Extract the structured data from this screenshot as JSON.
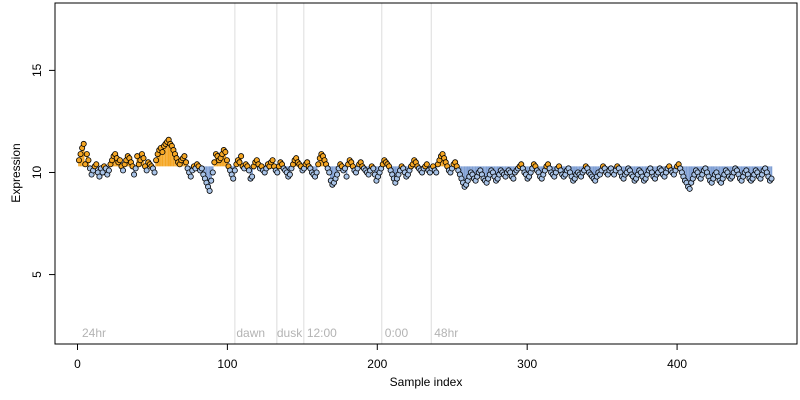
{
  "chart_data": {
    "type": "scatter",
    "title": "",
    "xlabel": "Sample index",
    "ylabel": "Expression",
    "xlim": [
      -15,
      480
    ],
    "ylim": [
      1.6,
      18.3
    ],
    "x_ticks": [
      0,
      100,
      200,
      300,
      400
    ],
    "y_ticks": [
      5,
      10,
      15
    ],
    "grid": false,
    "legend": "none",
    "colors": {
      "point_fill_orange": "#f5a623",
      "point_fill_blue": "#a9c4e8",
      "point_stroke": "#000000",
      "step_line": "#7f9fd4",
      "vline": "#dcdcdc",
      "annotation_text": "#b3b3b3"
    },
    "vlines": [
      105,
      133,
      151,
      203,
      236
    ],
    "annotations": [
      {
        "label": "24hr",
        "x": 3
      },
      {
        "label": "dawn",
        "x": 106
      },
      {
        "label": "dusk",
        "x": 133
      },
      {
        "label": "12:00",
        "x": 153
      },
      {
        "label": "0:00",
        "x": 205
      },
      {
        "label": "48hr",
        "x": 238
      }
    ],
    "series": [
      {
        "marker": "circle",
        "x_start": 1,
        "x_end": 463,
        "baseline": 10.3,
        "values": [
          10.6,
          10.9,
          11.2,
          11.4,
          10.4,
          10.9,
          10.6,
          10.2,
          9.9,
          10.1,
          10.3,
          10.4,
          10.0,
          9.8,
          10.2,
          10.0,
          10.3,
          10.2,
          9.9,
          10.1,
          10.4,
          10.6,
          10.8,
          10.9,
          10.7,
          10.5,
          10.6,
          10.3,
          10.1,
          10.4,
          10.6,
          10.8,
          10.7,
          10.5,
          10.3,
          9.9,
          10.2,
          10.8,
          10.4,
          10.6,
          10.9,
          10.7,
          10.3,
          10.1,
          10.5,
          10.4,
          10.3,
          10.2,
          10.0,
          10.6,
          10.9,
          11.1,
          11.2,
          11.0,
          11.3,
          11.4,
          11.5,
          11.6,
          11.4,
          11.3,
          11.1,
          10.9,
          10.7,
          10.5,
          10.4,
          10.6,
          10.7,
          10.8,
          10.5,
          10.2,
          10.0,
          9.8,
          10.1,
          10.3,
          10.2,
          10.4,
          10.3,
          10.1,
          10.2,
          9.9,
          9.7,
          9.5,
          9.3,
          9.1,
          9.6,
          10.0,
          10.5,
          10.9,
          10.8,
          10.6,
          10.7,
          10.9,
          11.1,
          11.0,
          10.6,
          10.3,
          10.1,
          9.9,
          9.7,
          10.1,
          10.4,
          10.6,
          10.5,
          10.8,
          10.3,
          10.2,
          10.4,
          10.3,
          10.1,
          9.7,
          9.8,
          10.3,
          10.5,
          10.6,
          10.4,
          10.2,
          10.3,
          10.1,
          10.0,
          10.2,
          10.4,
          10.3,
          10.5,
          10.6,
          10.3,
          10.1,
          10.0,
          10.3,
          10.5,
          10.4,
          10.2,
          10.1,
          10.0,
          9.8,
          9.9,
          10.2,
          10.4,
          10.6,
          10.7,
          10.5,
          10.4,
          10.3,
          10.1,
          10.2,
          10.4,
          10.5,
          10.3,
          10.2,
          10.0,
          9.9,
          9.8,
          10.0,
          10.4,
          10.7,
          10.9,
          10.8,
          10.6,
          10.4,
          10.2,
          10.0,
          9.6,
          9.4,
          9.5,
          9.7,
          9.9,
          10.2,
          10.4,
          10.3,
          10.1,
          10.2,
          9.8,
          10.4,
          10.6,
          10.5,
          10.3,
          10.1,
          10.0,
          10.2,
          10.4,
          10.5,
          10.3,
          10.2,
          10.1,
          10.0,
          9.9,
          10.1,
          10.3,
          10.2,
          9.9,
          9.6,
          9.8,
          10.0,
          10.2,
          10.4,
          10.6,
          10.5,
          10.4,
          10.3,
          10.1,
          9.9,
          9.7,
          9.5,
          9.7,
          9.9,
          10.1,
          10.3,
          10.2,
          10.0,
          9.8,
          9.9,
          10.1,
          10.3,
          10.4,
          10.6,
          10.5,
          10.3,
          10.2,
          10.1,
          10.0,
          10.2,
          10.3,
          10.4,
          10.1,
          10.0,
          10.2,
          10.3,
          10.1,
          10.0,
          10.4,
          10.6,
          10.8,
          10.9,
          10.7,
          10.5,
          10.3,
          10.1,
          10.0,
          10.2,
          10.4,
          10.5,
          10.3,
          10.1,
          9.9,
          9.7,
          9.5,
          9.3,
          9.4,
          9.6,
          9.8,
          10.0,
          9.9,
          9.7,
          9.6,
          9.8,
          10.0,
          10.1,
          9.9,
          9.7,
          9.6,
          9.5,
          9.7,
          9.9,
          10.1,
          10.0,
          9.8,
          9.6,
          9.7,
          9.9,
          10.1,
          10.0,
          9.9,
          9.8,
          10.0,
          10.1,
          10.0,
          9.8,
          9.7,
          10.0,
          10.1,
          10.2,
          10.3,
          10.4,
          10.2,
          10.0,
          9.9,
          9.7,
          9.8,
          10.0,
          10.2,
          10.4,
          10.3,
          10.1,
          10.0,
          9.8,
          9.7,
          9.9,
          10.1,
          10.3,
          10.4,
          10.2,
          10.0,
          9.9,
          9.8,
          10.0,
          10.2,
          10.3,
          10.1,
          9.9,
          9.8,
          9.9,
          10.1,
          10.2,
          10.0,
          9.8,
          9.6,
          9.7,
          9.9,
          10.0,
          9.9,
          9.8,
          10.0,
          10.1,
          10.3,
          10.2,
          10.0,
          9.9,
          9.8,
          9.7,
          9.6,
          9.8,
          10.0,
          9.9,
          10.1,
          10.3,
          10.2,
          10.0,
          9.9,
          10.1,
          10.2,
          10.0,
          9.9,
          10.1,
          10.3,
          10.2,
          10.0,
          9.8,
          9.7,
          9.9,
          10.0,
          10.2,
          10.1,
          9.9,
          9.8,
          9.6,
          9.7,
          9.9,
          10.1,
          10.0,
          9.8,
          9.6,
          9.7,
          9.9,
          10.1,
          10.2,
          10.0,
          9.8,
          9.7,
          9.9,
          10.0,
          10.2,
          10.1,
          9.9,
          9.8,
          10.0,
          10.2,
          10.3,
          10.1,
          10.0,
          9.9,
          10.1,
          10.3,
          10.4,
          10.2,
          10.0,
          9.8,
          9.6,
          9.5,
          9.3,
          9.2,
          9.5,
          9.7,
          9.9,
          10.1,
          10.0,
          9.8,
          9.7,
          9.9,
          10.1,
          10.2,
          10.0,
          9.8,
          9.6,
          9.5,
          9.7,
          9.9,
          10.0,
          9.8,
          9.6,
          9.5,
          9.7,
          9.9,
          10.1,
          10.0,
          9.8,
          9.7,
          9.8,
          10.0,
          10.2,
          10.1,
          9.9,
          9.7,
          9.6,
          9.8,
          10.0,
          10.1,
          9.9,
          9.7,
          9.6,
          9.7,
          9.9,
          10.1,
          10.0,
          9.8,
          9.7,
          9.9,
          10.1,
          10.2,
          10.0,
          9.8,
          9.6,
          9.7
        ]
      }
    ]
  }
}
